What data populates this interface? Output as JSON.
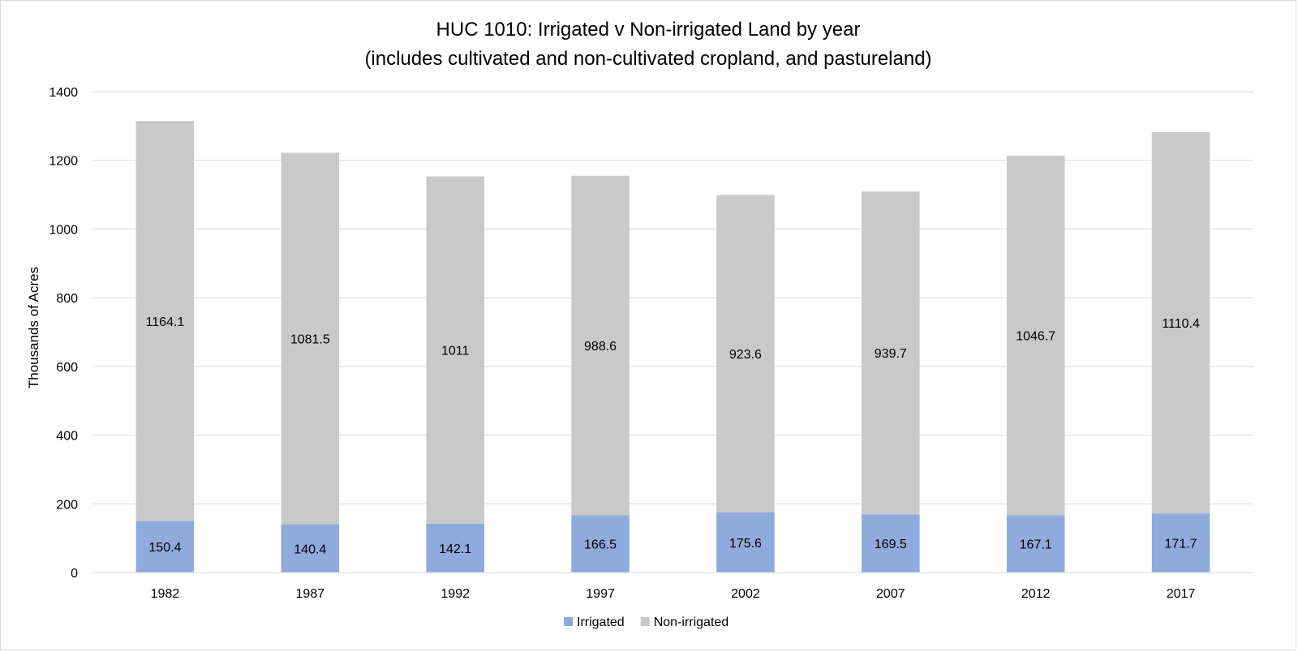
{
  "chart_data": {
    "type": "bar",
    "stacked": true,
    "title": "HUC 1010: Irrigated v Non-irrigated Land by year",
    "subtitle": "(includes cultivated and non-cultivated cropland, and pastureland)",
    "xlabel": "",
    "ylabel": "Thousands of Acres",
    "ylim": [
      0,
      1400
    ],
    "yticks": [
      0,
      200,
      400,
      600,
      800,
      1000,
      1200,
      1400
    ],
    "grid": true,
    "legend_position": "bottom",
    "categories": [
      "1982",
      "1987",
      "1992",
      "1997",
      "2002",
      "2007",
      "2012",
      "2017"
    ],
    "series": [
      {
        "name": "Irrigated",
        "color": "#8faadc",
        "values": [
          150.4,
          140.4,
          142.1,
          166.5,
          175.6,
          169.5,
          167.1,
          171.7
        ],
        "labels": [
          "150.4",
          "140.4",
          "142.1",
          "166.5",
          "175.6",
          "169.5",
          "167.1",
          "171.7"
        ]
      },
      {
        "name": "Non-irrigated",
        "color": "#c9c9c9",
        "values": [
          1164.1,
          1081.5,
          1011,
          988.6,
          923.6,
          939.7,
          1046.7,
          1110.4
        ],
        "labels": [
          "1164.1",
          "1081.5",
          "1011",
          "988.6",
          "923.6",
          "939.7",
          "1046.7",
          "1110.4"
        ]
      }
    ]
  }
}
